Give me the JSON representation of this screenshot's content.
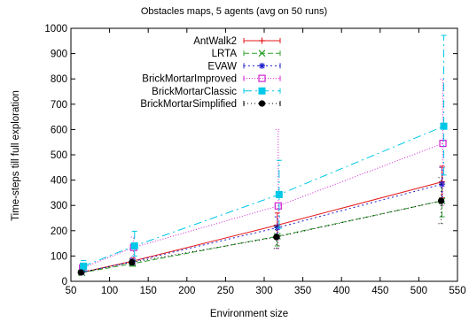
{
  "chart_data": {
    "type": "line",
    "title": "Obstacles maps, 5 agents (avg on 50 runs)",
    "xlabel": "Environment size",
    "ylabel": "Time-steps till full exploration",
    "xlim": [
      50,
      550
    ],
    "ylim": [
      0,
      1000
    ],
    "x_ticks": [
      50,
      100,
      150,
      200,
      250,
      300,
      350,
      400,
      450,
      500,
      550
    ],
    "y_ticks": [
      0,
      100,
      200,
      300,
      400,
      500,
      600,
      700,
      800,
      900,
      1000
    ],
    "grid": false,
    "legend_position": "top-left",
    "x": [
      64,
      130,
      317,
      530
    ],
    "series": [
      {
        "name": "AntWalk2",
        "color": "#e41a1c",
        "marker": "plus",
        "dash": "",
        "values": [
          35,
          80,
          222,
          393
        ],
        "err_low": [
          28,
          68,
          175,
          330
        ],
        "err_high": [
          44,
          92,
          270,
          455
        ],
        "x_offset": 0
      },
      {
        "name": "LRTA",
        "color": "#2ca02c",
        "marker": "x",
        "dash": "6,3",
        "values": [
          34,
          70,
          178,
          318
        ],
        "err_low": [
          28,
          60,
          140,
          255
        ],
        "err_high": [
          42,
          82,
          215,
          385
        ],
        "x_offset": 0
      },
      {
        "name": "EVAW",
        "color": "#1f1fcc",
        "marker": "star",
        "dash": "2,3",
        "values": [
          36,
          78,
          212,
          384
        ],
        "err_low": [
          29,
          65,
          170,
          315
        ],
        "err_high": [
          44,
          90,
          255,
          450
        ],
        "x_offset": 0
      },
      {
        "name": "BrickMortarImproved",
        "color": "#d020d0",
        "marker": "square-open",
        "dash": "1,2",
        "values": [
          53,
          134,
          298,
          545
        ],
        "err_low": [
          35,
          95,
          130,
          300
        ],
        "err_high": [
          72,
          175,
          600,
          800
        ],
        "x_offset": 1
      },
      {
        "name": "BrickMortarClassic",
        "color": "#00c8e6",
        "marker": "square-filled",
        "dash": "9,4,2,4",
        "values": [
          60,
          140,
          343,
          613
        ],
        "err_low": [
          40,
          100,
          210,
          420
        ],
        "err_high": [
          82,
          198,
          478,
          972
        ],
        "x_offset": 2
      },
      {
        "name": "BrickMortarSimplified",
        "color": "#000000",
        "marker": "circle-filled",
        "dash": "1,3",
        "values": [
          35,
          75,
          175,
          318
        ],
        "err_low": [
          29,
          63,
          130,
          228
        ],
        "err_high": [
          43,
          88,
          220,
          410
        ],
        "x_offset": -1
      }
    ]
  }
}
